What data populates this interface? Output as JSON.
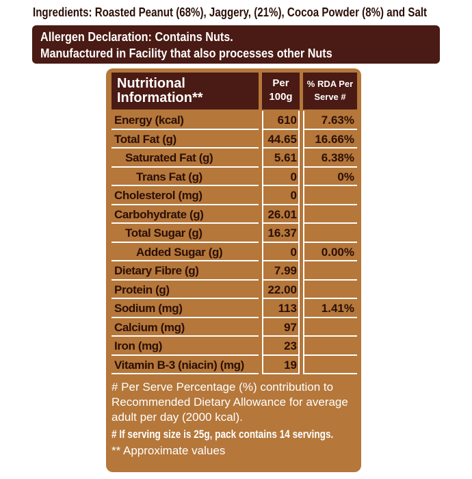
{
  "ingredients": "Ingredients: Roasted Peanut (68%), Jaggery, (21%), Cocoa Powder (8%) and Salt",
  "allergen": [
    "Allergen Declaration: Contains Nuts.",
    "Manufactured in Facility that also processes other Nuts"
  ],
  "table": {
    "header": [
      "Nutritional Information**",
      "Per 100g",
      "% RDA Per Serve #"
    ],
    "rows": [
      [
        "Energy (kcal)",
        "610",
        "7.63%"
      ],
      [
        "Total Fat (g)",
        "44.65",
        "16.66%"
      ],
      [
        "Saturated Fat (g)",
        "5.61",
        "6.38%"
      ],
      [
        "Trans Fat (g)",
        "0",
        "0%"
      ],
      [
        "Cholesterol (mg)",
        "0",
        null
      ],
      [
        "Carbohydrate (g)",
        "26.01",
        null
      ],
      [
        "Total Sugar (g)",
        "16.37",
        null
      ],
      [
        "Added Sugar (g)",
        "0",
        "0.00%"
      ],
      [
        "Dietary Fibre (g)",
        "7.99",
        null
      ],
      [
        "Protein (g)",
        "22.00",
        null
      ],
      [
        "Sodium (mg)",
        "113",
        "1.41%"
      ],
      [
        "Calcium (mg)",
        "97",
        null
      ],
      [
        "Iron (mg)",
        "23",
        null
      ],
      [
        "Vitamin B-3 (niacin) (mg)",
        "19",
        null
      ]
    ]
  },
  "footnotes": [
    "# Per Serve Percentage (%) contribution to",
    "Recommended Dietary Allowance for average",
    "adult per day (2000 kcal).",
    "# If serving size is 25g, pack contains 14 servings.",
    "** Approximate values"
  ]
}
